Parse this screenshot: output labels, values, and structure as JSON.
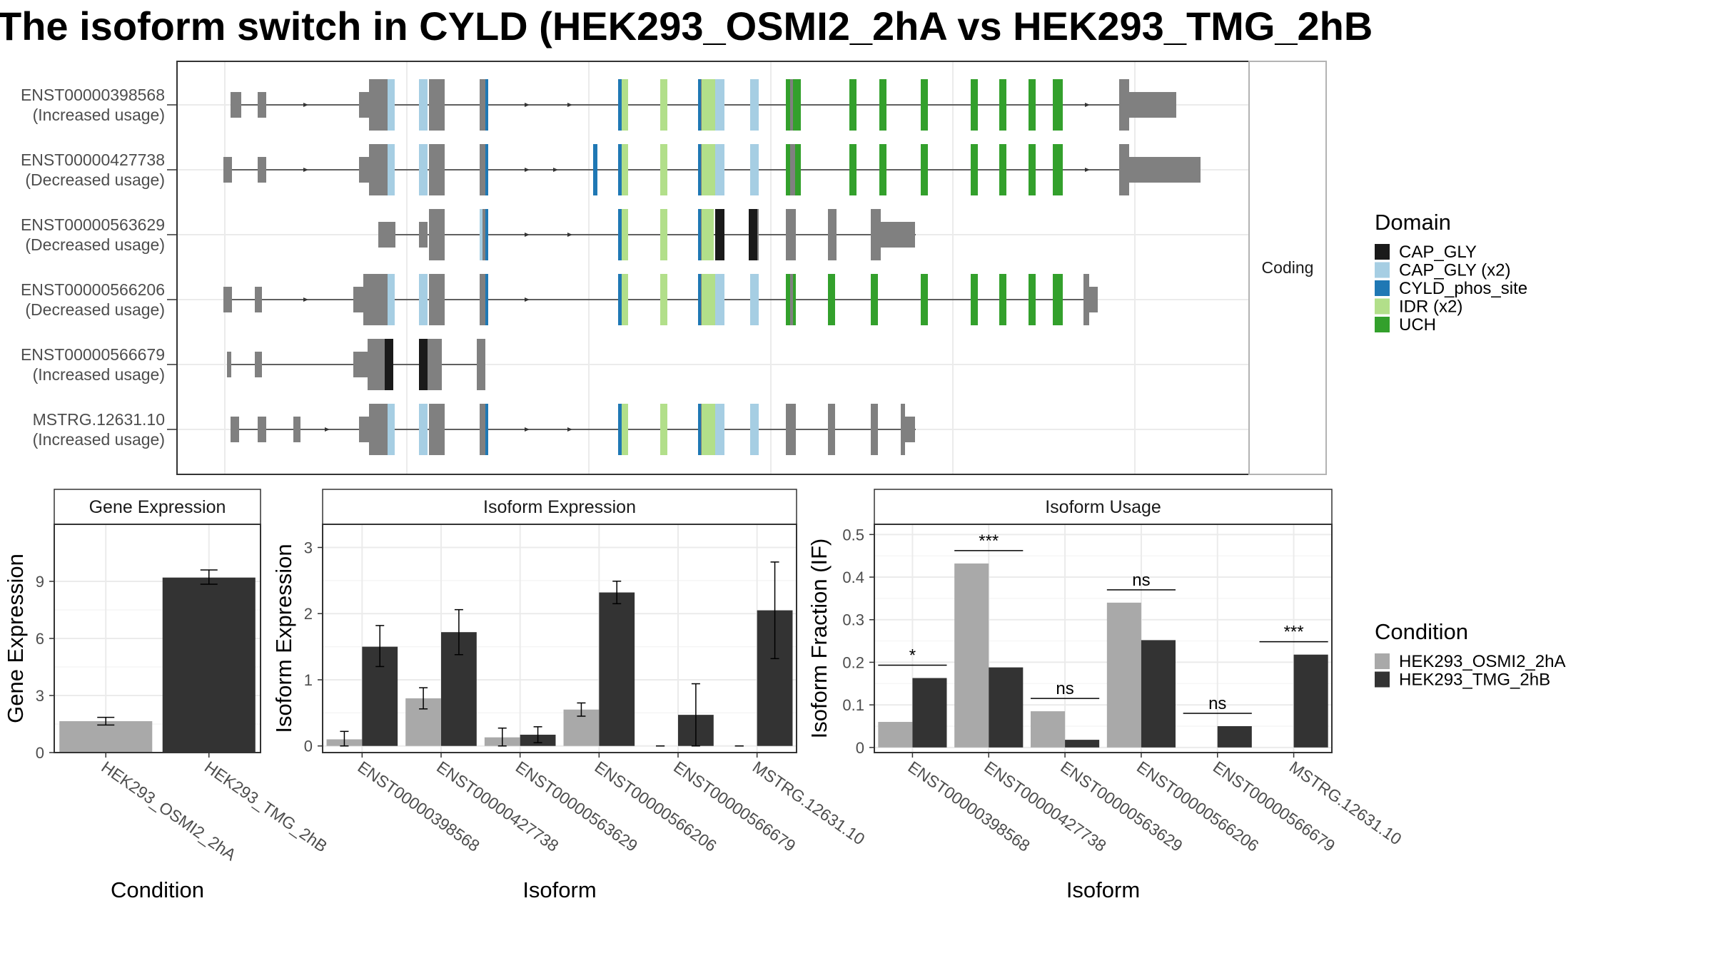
{
  "title": "The isoform switch in CYLD (HEK293_OSMI2_2hA vs HEK293_TMG_2hB",
  "colors": {
    "exon": "#808080",
    "CAP_GLY": "#1a1a1a",
    "CAP_GLY (x2)": "#a6cee3",
    "CYLD_phos_site": "#1f78b4",
    "IDR (x2)": "#b2df8a",
    "UCH": "#33a02c",
    "HEK293_OSMI2_2hA": "#a9a9a9",
    "HEK293_TMG_2hB": "#333333"
  },
  "transcript_panel": {
    "strip_label": "Coding",
    "transcripts": [
      {
        "id": "ENST00000398568",
        "change": "(Increased usage)"
      },
      {
        "id": "ENST00000427738",
        "change": "(Decreased usage)"
      },
      {
        "id": "ENST00000563629",
        "change": "(Decreased usage)"
      },
      {
        "id": "ENST00000566206",
        "change": "(Decreased usage)"
      },
      {
        "id": "ENST00000566679",
        "change": "(Increased usage)"
      },
      {
        "id": "MSTRG.12631.10",
        "change": "(Increased usage)"
      }
    ]
  },
  "legend_domain": {
    "title": "Domain",
    "items": [
      {
        "label": "CAP_GLY",
        "color": "#1a1a1a"
      },
      {
        "label": "CAP_GLY (x2)",
        "color": "#a6cee3"
      },
      {
        "label": "CYLD_phos_site",
        "color": "#1f78b4"
      },
      {
        "label": "IDR (x2)",
        "color": "#b2df8a"
      },
      {
        "label": "UCH",
        "color": "#33a02c"
      }
    ]
  },
  "legend_condition": {
    "title": "Condition",
    "items": [
      {
        "label": "HEK293_OSMI2_2hA",
        "color": "#a9a9a9"
      },
      {
        "label": "HEK293_TMG_2hB",
        "color": "#333333"
      }
    ]
  },
  "chart_data": [
    {
      "type": "bar",
      "title": "Gene Expression",
      "xlabel": "Condition",
      "ylabel": "Gene Expression",
      "categories": [
        "HEK293_OSMI2_2hA",
        "HEK293_TMG_2hB"
      ],
      "values": [
        1.65,
        9.2
      ],
      "errors": [
        [
          1.45,
          1.85
        ],
        [
          8.85,
          9.6
        ]
      ],
      "yticks": [
        0,
        3,
        6,
        9
      ],
      "ylim": [
        0,
        12
      ]
    },
    {
      "type": "bar",
      "title": "Isoform Expression",
      "xlabel": "Isoform",
      "ylabel": "Isoform Expression",
      "categories": [
        "ENST00000398568",
        "ENST00000427738",
        "ENST00000563629",
        "ENST00000566206",
        "ENST00000566679",
        "MSTRG.12631.10"
      ],
      "series": [
        {
          "name": "HEK293_OSMI2_2hA",
          "values": [
            0.1,
            0.72,
            0.13,
            0.55,
            0.0,
            0.0
          ],
          "errors": [
            [
              0.0,
              0.22
            ],
            [
              0.56,
              0.88
            ],
            [
              0.0,
              0.27
            ],
            [
              0.45,
              0.65
            ],
            [
              0.0,
              0.0
            ],
            [
              0.0,
              0.0
            ]
          ]
        },
        {
          "name": "HEK293_TMG_2hB",
          "values": [
            1.5,
            1.72,
            0.17,
            2.32,
            0.47,
            2.05
          ],
          "errors": [
            [
              1.2,
              1.82
            ],
            [
              1.38,
              2.06
            ],
            [
              0.05,
              0.29
            ],
            [
              2.15,
              2.49
            ],
            [
              0.0,
              0.94
            ],
            [
              1.32,
              2.78
            ]
          ]
        }
      ],
      "yticks": [
        0,
        1,
        2,
        3
      ],
      "ylim": [
        -0.1,
        3.35
      ]
    },
    {
      "type": "bar",
      "title": "Isoform Usage",
      "xlabel": "Isoform",
      "ylabel": "Isoform Fraction (IF)",
      "categories": [
        "ENST00000398568",
        "ENST00000427738",
        "ENST00000563629",
        "ENST00000566206",
        "ENST00000566679",
        "MSTRG.12631.10"
      ],
      "series": [
        {
          "name": "HEK293_OSMI2_2hA",
          "values": [
            0.06,
            0.432,
            0.085,
            0.34,
            0.0,
            0.0
          ]
        },
        {
          "name": "HEK293_TMG_2hB",
          "values": [
            0.163,
            0.188,
            0.018,
            0.252,
            0.05,
            0.218
          ]
        }
      ],
      "significance": [
        "*",
        "***",
        "ns",
        "ns",
        "ns",
        "***"
      ],
      "yticks": [
        0.0,
        0.1,
        0.2,
        0.3,
        0.4,
        0.5
      ],
      "ylim": [
        -0.012,
        0.524
      ]
    }
  ]
}
